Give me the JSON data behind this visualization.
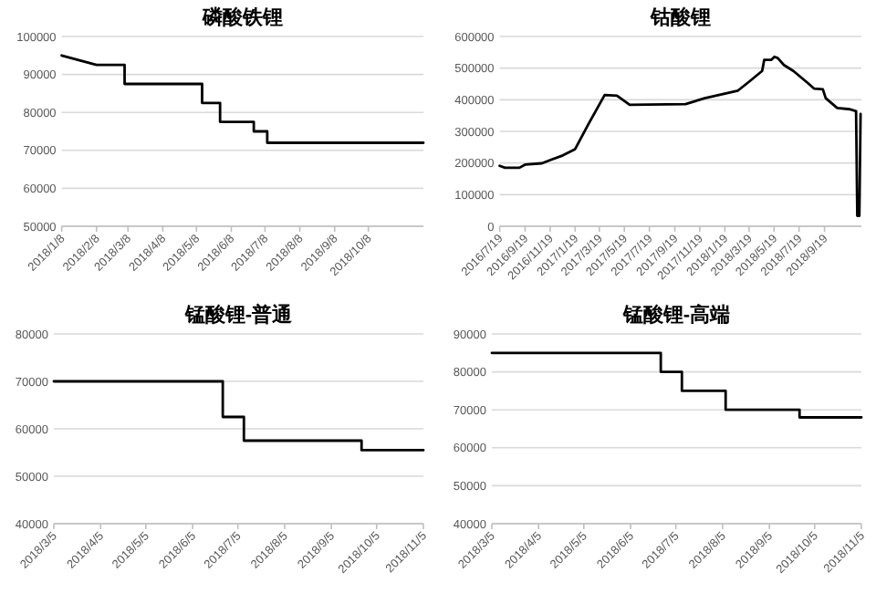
{
  "chart_data": [
    {
      "type": "line",
      "title": "磷酸铁锂",
      "grid": "y",
      "xlim": [
        "2018-01-08",
        "2018-11-26"
      ],
      "ylim": [
        50000,
        100000
      ],
      "yticks": [
        50000,
        60000,
        70000,
        80000,
        90000,
        100000
      ],
      "xticks": [
        {
          "value": "2018-01-08",
          "label": "2018/1/8"
        },
        {
          "value": "2018-02-08",
          "label": "2018/2/8"
        },
        {
          "value": "2018-03-08",
          "label": "2018/3/8"
        },
        {
          "value": "2018-04-08",
          "label": "2018/4/8"
        },
        {
          "value": "2018-05-08",
          "label": "2018/5/8"
        },
        {
          "value": "2018-06-08",
          "label": "2018/6/8"
        },
        {
          "value": "2018-07-08",
          "label": "2018/7/8"
        },
        {
          "value": "2018-08-08",
          "label": "2018/8/8"
        },
        {
          "value": "2018-09-08",
          "label": "2018/9/8"
        },
        {
          "value": "2018-10-08",
          "label": "2018/10/8"
        }
      ],
      "series": [
        {
          "color": "#000000",
          "x": [
            "2018-01-08",
            "2018-02-08",
            "2018-03-05",
            "2018-03-05",
            "2018-05-13",
            "2018-05-13",
            "2018-05-29",
            "2018-05-29",
            "2018-06-28",
            "2018-06-28",
            "2018-07-10",
            "2018-07-10",
            "2018-11-26"
          ],
          "values": [
            95000,
            92500,
            92500,
            87500,
            87500,
            82500,
            82500,
            77500,
            77500,
            75000,
            75000,
            72000,
            72000
          ]
        }
      ]
    },
    {
      "type": "line",
      "title": "钴酸锂",
      "grid": "y",
      "xlim": [
        "2016-07-19",
        "2018-12-18"
      ],
      "ylim": [
        0,
        600000
      ],
      "yticks": [
        0,
        100000,
        200000,
        300000,
        400000,
        500000,
        600000
      ],
      "xticks": [
        {
          "value": "2016-07-19",
          "label": "2016/7/19"
        },
        {
          "value": "2016-09-19",
          "label": "2016/9/19"
        },
        {
          "value": "2016-11-19",
          "label": "2016/11/19"
        },
        {
          "value": "2017-01-19",
          "label": "2017/1/19"
        },
        {
          "value": "2017-03-19",
          "label": "2017/3/19"
        },
        {
          "value": "2017-05-19",
          "label": "2017/5/19"
        },
        {
          "value": "2017-07-19",
          "label": "2017/7/19"
        },
        {
          "value": "2017-09-19",
          "label": "2017/9/19"
        },
        {
          "value": "2017-11-19",
          "label": "2017/11/19"
        },
        {
          "value": "2018-01-19",
          "label": "2018/1/19"
        },
        {
          "value": "2018-03-19",
          "label": "2018/3/19"
        },
        {
          "value": "2018-05-19",
          "label": "2018/5/19"
        },
        {
          "value": "2018-07-19",
          "label": "2018/7/19"
        },
        {
          "value": "2018-09-19",
          "label": "2018/9/19"
        }
      ],
      "series": [
        {
          "color": "#000000",
          "x": [
            "2016-07-19",
            "2016-08-01",
            "2016-09-05",
            "2016-09-19",
            "2016-10-30",
            "2016-11-19",
            "2016-12-20",
            "2017-01-19",
            "2017-02-20",
            "2017-04-01",
            "2017-05-01",
            "2017-06-01",
            "2017-10-15",
            "2017-12-01",
            "2018-02-20",
            "2018-03-20",
            "2018-04-20",
            "2018-04-25",
            "2018-05-12",
            "2018-05-20",
            "2018-05-28",
            "2018-06-12",
            "2018-07-05",
            "2018-08-10",
            "2018-08-25",
            "2018-09-15",
            "2018-09-22",
            "2018-10-20",
            "2018-11-20",
            "2018-12-05",
            "2018-12-08",
            "2018-12-13",
            "2018-12-16"
          ],
          "values": [
            191000,
            185000,
            185000,
            195000,
            199000,
            209000,
            224000,
            244000,
            322000,
            415000,
            413000,
            384000,
            386000,
            405000,
            429000,
            458000,
            491000,
            526000,
            526000,
            536000,
            532000,
            510000,
            491000,
            452000,
            435000,
            433000,
            405000,
            374000,
            370000,
            364000,
            33000,
            33000,
            355000
          ]
        }
      ]
    },
    {
      "type": "line",
      "title": "锰酸锂-普通",
      "grid": "y",
      "xlim": [
        "2018-03-05",
        "2018-11-05"
      ],
      "ylim": [
        40000,
        80000
      ],
      "yticks": [
        40000,
        50000,
        60000,
        70000,
        80000
      ],
      "xticks": [
        {
          "value": "2018-03-05",
          "label": "2018/3/5"
        },
        {
          "value": "2018-04-05",
          "label": "2018/4/5"
        },
        {
          "value": "2018-05-05",
          "label": "2018/5/5"
        },
        {
          "value": "2018-06-05",
          "label": "2018/6/5"
        },
        {
          "value": "2018-07-05",
          "label": "2018/7/5"
        },
        {
          "value": "2018-08-05",
          "label": "2018/8/5"
        },
        {
          "value": "2018-09-05",
          "label": "2018/9/5"
        },
        {
          "value": "2018-10-05",
          "label": "2018/10/5"
        },
        {
          "value": "2018-11-05",
          "label": "2018/11/5"
        }
      ],
      "series": [
        {
          "color": "#000000",
          "x": [
            "2018-03-05",
            "2018-06-25",
            "2018-06-25",
            "2018-07-09",
            "2018-07-09",
            "2018-09-25",
            "2018-09-25",
            "2018-11-05"
          ],
          "values": [
            70000,
            70000,
            62500,
            62500,
            57500,
            57500,
            55500,
            55500
          ]
        }
      ]
    },
    {
      "type": "line",
      "title": "锰酸锂-高端",
      "grid": "y",
      "xlim": [
        "2018-03-05",
        "2018-11-05"
      ],
      "ylim": [
        40000,
        90000
      ],
      "yticks": [
        40000,
        50000,
        60000,
        70000,
        80000,
        90000
      ],
      "xticks": [
        {
          "value": "2018-03-05",
          "label": "2018/3/5"
        },
        {
          "value": "2018-04-05",
          "label": "2018/4/5"
        },
        {
          "value": "2018-05-05",
          "label": "2018/5/5"
        },
        {
          "value": "2018-06-05",
          "label": "2018/6/5"
        },
        {
          "value": "2018-07-05",
          "label": "2018/7/5"
        },
        {
          "value": "2018-08-05",
          "label": "2018/8/5"
        },
        {
          "value": "2018-09-05",
          "label": "2018/9/5"
        },
        {
          "value": "2018-10-05",
          "label": "2018/10/5"
        },
        {
          "value": "2018-11-05",
          "label": "2018/11/5"
        }
      ],
      "series": [
        {
          "color": "#000000",
          "x": [
            "2018-03-05",
            "2018-06-25",
            "2018-06-25",
            "2018-07-09",
            "2018-07-09",
            "2018-08-07",
            "2018-08-07",
            "2018-09-25",
            "2018-09-25",
            "2018-11-05"
          ],
          "values": [
            85000,
            85000,
            80000,
            80000,
            75000,
            75000,
            70000,
            70000,
            68000,
            68000
          ]
        }
      ]
    }
  ]
}
